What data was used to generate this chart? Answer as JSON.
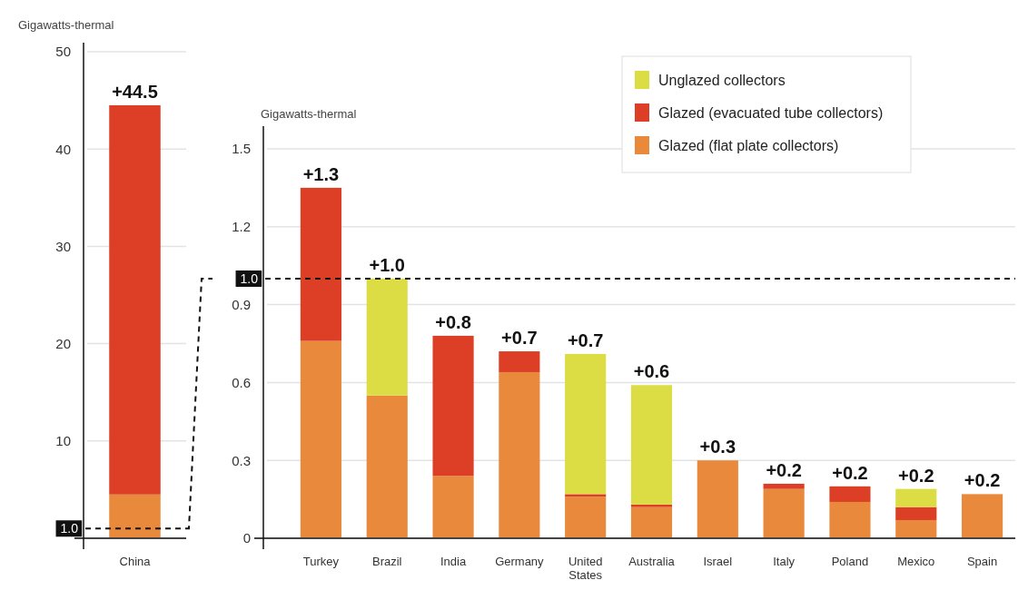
{
  "chart_data": [
    {
      "type": "bar",
      "stacked": true,
      "ylabel": "Gigawatts-thermal",
      "categories": [
        "China"
      ],
      "ylim": [
        0,
        50
      ],
      "yticks": [
        10,
        20,
        30,
        40,
        50
      ],
      "grid": "y",
      "legend": false,
      "series": [
        {
          "color": "#e8893b",
          "values": [
            4.5
          ]
        },
        {
          "color": "#dc3f26",
          "values": [
            40.0
          ]
        }
      ],
      "totals": [
        "+44.5"
      ],
      "ref_lines": [
        {
          "axis": "y",
          "value": 1.0,
          "label": "1.0",
          "line_style": "dashed",
          "color": "#111111"
        }
      ]
    },
    {
      "type": "bar",
      "stacked": true,
      "ylabel": "Gigawatts-thermal",
      "categories": [
        "Turkey",
        "Brazil",
        "India",
        "Germany",
        "United States",
        "Australia",
        "Israel",
        "Italy",
        "Poland",
        "Mexico",
        "Spain"
      ],
      "ylim": [
        0,
        1.5
      ],
      "yticks": [
        0,
        0.3,
        0.6,
        0.9,
        1.2,
        1.5
      ],
      "grid": "y",
      "legend": "top right",
      "series": [
        {
          "name": "Glazed (flat plate collectors)",
          "color": "#e8893b",
          "values": [
            0.76,
            0.55,
            0.24,
            0.64,
            0.16,
            0.12,
            0.3,
            0.19,
            0.14,
            0.07,
            0.17
          ]
        },
        {
          "name": "Glazed (evacuated tube collectors)",
          "color": "#dc3f26",
          "values": [
            0.59,
            0,
            0.54,
            0.08,
            0.01,
            0.01,
            0,
            0.02,
            0.06,
            0.05,
            0
          ]
        },
        {
          "name": "Unglazed collectors",
          "color": "#dcdc45",
          "values": [
            0,
            0.45,
            0,
            0,
            0.54,
            0.46,
            0,
            0,
            0,
            0.07,
            0
          ]
        }
      ],
      "totals": [
        "+1.3",
        "+1.0",
        "+0.8",
        "+0.7",
        "+0.7",
        "+0.6",
        "+0.3",
        "+0.2",
        "+0.2",
        "+0.2",
        "+0.2"
      ],
      "ref_lines": [
        {
          "axis": "y",
          "value": 1.0,
          "label": "1.0",
          "line_style": "dashed",
          "color": "#111111"
        }
      ]
    }
  ]
}
